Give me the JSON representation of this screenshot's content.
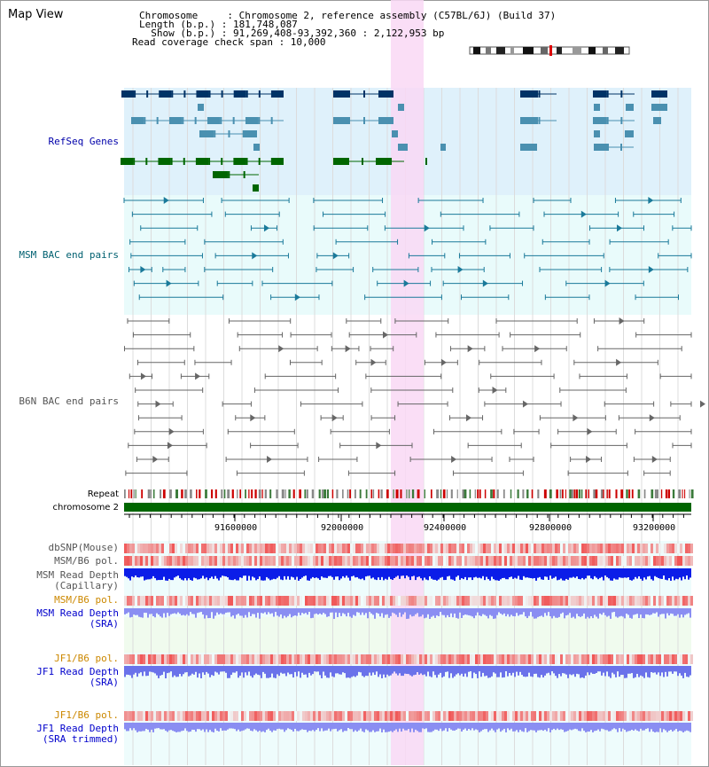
{
  "title": "Map View",
  "header": {
    "chromosome_line": "Chromosome     : Chromosome 2, reference assembly (C57BL/6J) (Build 37)",
    "length_line": "Length (b.p.) : 181,748,087",
    "show_line": "  Show (b.p.) : 91,269,408-93,392,360 : 2,122,953 bp",
    "coverage_line": "Read coverage check span : 10,000"
  },
  "tracks": {
    "refseq": "RefSeq Genes",
    "msm_bac": "MSM BAC end pairs",
    "b6n_bac": "B6N BAC end pairs",
    "repeat": "Repeat",
    "chromosome": "chromosome 2",
    "dbsnp": "dbSNP(Mouse)",
    "msm_b6_pol1": "MSM/B6 pol.",
    "msm_depth_cap": "MSM Read Depth\n(Capillary)",
    "msm_b6_pol2": "MSM/B6 pol.",
    "msm_depth_sra": "MSM Read Depth\n(SRA)",
    "jf1_b6_pol1": "JF1/B6 pol.",
    "jf1_depth_sra": "JF1 Read Depth\n(SRA)",
    "jf1_b6_pol2": "JF1/B6 pol.",
    "jf1_depth_trim": "JF1 Read Depth\n(SRA trimmed)"
  },
  "axis": {
    "ticks": [
      "91600000",
      "92000000",
      "92400000",
      "92800000",
      "93200000"
    ]
  },
  "colors": {
    "refseq_bg": "#dff1fb",
    "cyan_bg": "#e9fbfb",
    "highlight": "#f9d8f5",
    "refseq_label": "#0000aa",
    "msm_label": "#006070",
    "b6n_label": "#555555",
    "pol_label_jf1": "#cc8800",
    "depth_label": "#0000cc",
    "chromosome_bar": "#006600"
  }
}
